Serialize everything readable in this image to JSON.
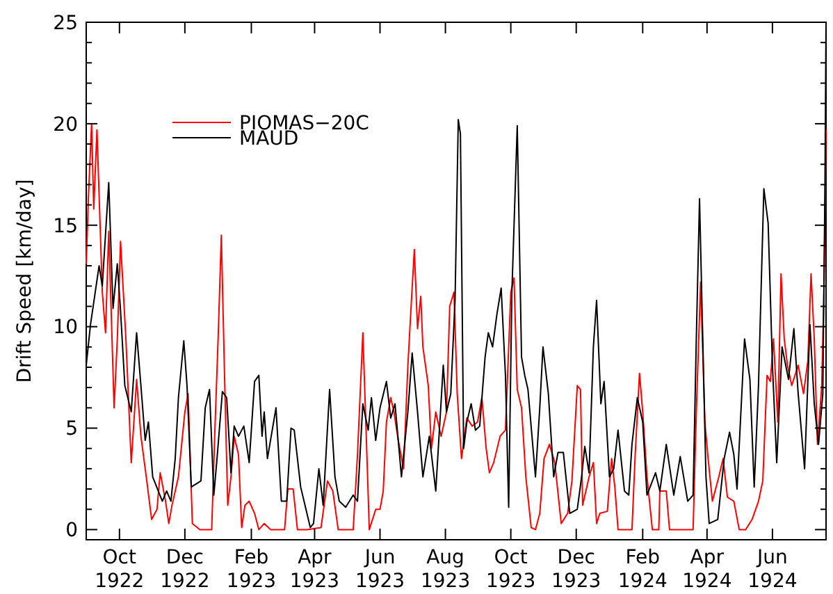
{
  "chart_data": {
    "type": "line",
    "ylabel": "Drift Speed [km/day]",
    "xlim": [
      "1922-08-31",
      "1924-07-21"
    ],
    "ylim": [
      -0.5,
      25
    ],
    "xticks": [
      {
        "value": "1922-10-01",
        "label": "Oct 1922"
      },
      {
        "value": "1922-12-01",
        "label": "Dec 1922"
      },
      {
        "value": "1923-02-01",
        "label": "Feb 1923"
      },
      {
        "value": "1923-04-01",
        "label": "Apr 1923"
      },
      {
        "value": "1923-06-01",
        "label": "Jun 1923"
      },
      {
        "value": "1923-08-01",
        "label": "Aug 1923"
      },
      {
        "value": "1923-10-01",
        "label": "Oct 1923"
      },
      {
        "value": "1923-12-01",
        "label": "Dec 1923"
      },
      {
        "value": "1924-02-01",
        "label": "Feb 1924"
      },
      {
        "value": "1924-04-01",
        "label": "Apr 1924"
      },
      {
        "value": "1924-06-01",
        "label": "Jun 1924"
      }
    ],
    "yticks": [
      0,
      {
        "value": 1,
        "label": null
      },
      {
        "value": 2,
        "label": null
      },
      {
        "value": 3,
        "label": null
      },
      {
        "value": 4,
        "label": null
      },
      5,
      {
        "value": 6,
        "label": null
      },
      {
        "value": 7,
        "label": null
      },
      {
        "value": 8,
        "label": null
      },
      {
        "value": 9,
        "label": null
      },
      10,
      {
        "value": 11,
        "label": null
      },
      {
        "value": 12,
        "label": null
      },
      {
        "value": 13,
        "label": null
      },
      {
        "value": 14,
        "label": null
      },
      15,
      {
        "value": 16,
        "label": null
      },
      {
        "value": 17,
        "label": null
      },
      {
        "value": 18,
        "label": null
      },
      {
        "value": 19,
        "label": null
      },
      20,
      {
        "value": 21,
        "label": null
      },
      {
        "value": 22,
        "label": null
      },
      {
        "value": 23,
        "label": null
      },
      {
        "value": 24,
        "label": null
      },
      25
    ],
    "grid": false,
    "legend": "top left",
    "marker": "none",
    "line_style": "solid",
    "series": [
      {
        "name": "PIOMAS−20C",
        "color": "#ff0000",
        "x": [
          "1922-08-31",
          "1922-09-02",
          "1922-09-05",
          "1922-09-07",
          "1922-09-10",
          "1922-09-15",
          "1922-09-18",
          "1922-09-21",
          "1922-09-26",
          "1922-09-29",
          "1922-10-02",
          "1922-10-07",
          "1922-10-12",
          "1922-10-17",
          "1922-10-21",
          "1922-10-26",
          "1922-10-31",
          "1922-11-05",
          "1922-11-08",
          "1922-11-13",
          "1922-11-16",
          "1922-11-19",
          "1922-11-25",
          "1922-12-01",
          "1922-12-04",
          "1922-12-08",
          "1922-12-15",
          "1922-12-20",
          "1922-12-26",
          "1922-12-29",
          "1923-01-01",
          "1923-01-04",
          "1923-01-07",
          "1923-01-10",
          "1923-01-13",
          "1923-01-16",
          "1923-01-20",
          "1923-01-23",
          "1923-01-26",
          "1923-01-30",
          "1923-02-04",
          "1923-02-08",
          "1923-02-13",
          "1923-02-19",
          "1923-03-04",
          "1923-03-07",
          "1923-03-12",
          "1923-03-16",
          "1923-03-25",
          "1923-04-07",
          "1923-04-13",
          "1923-04-18",
          "1923-04-23",
          "1923-05-07",
          "1923-05-11",
          "1923-05-16",
          "1923-05-19",
          "1923-05-22",
          "1923-05-28",
          "1923-06-01",
          "1923-06-04",
          "1923-06-07",
          "1923-06-11",
          "1923-06-14",
          "1923-06-18",
          "1923-06-23",
          "1923-06-27",
          "1923-06-30",
          "1923-07-03",
          "1923-07-06",
          "1923-07-09",
          "1923-07-11",
          "1923-07-16",
          "1923-07-19",
          "1923-07-23",
          "1923-07-28",
          "1923-08-02",
          "1923-08-05",
          "1923-08-09",
          "1923-08-12",
          "1923-08-16",
          "1923-08-21",
          "1923-08-26",
          "1923-08-31",
          "1923-09-04",
          "1923-09-08",
          "1923-09-11",
          "1923-09-15",
          "1923-09-21",
          "1923-09-26",
          "1923-10-01",
          "1923-10-04",
          "1923-10-07",
          "1923-10-11",
          "1923-10-15",
          "1923-10-20",
          "1923-10-24",
          "1923-10-28",
          "1923-11-01",
          "1923-11-06",
          "1923-11-11",
          "1923-11-17",
          "1923-11-23",
          "1923-11-27",
          "1923-12-02",
          "1923-12-05",
          "1923-12-07",
          "1923-12-13",
          "1923-12-17",
          "1923-12-20",
          "1923-12-23",
          "1923-12-30",
          "1924-01-03",
          "1924-01-06",
          "1924-01-09",
          "1924-01-22",
          "1924-01-25",
          "1924-01-29",
          "1924-02-01",
          "1924-02-05",
          "1924-02-10",
          "1924-02-16",
          "1924-02-17",
          "1924-02-23",
          "1924-02-26",
          "1924-03-19",
          "1924-03-22",
          "1924-03-26",
          "1924-03-30",
          "1924-04-02",
          "1924-04-06",
          "1924-04-12",
          "1924-04-16",
          "1924-04-20",
          "1924-04-26",
          "1924-05-01",
          "1924-05-07",
          "1924-05-13",
          "1924-05-19",
          "1924-05-23",
          "1924-05-27",
          "1924-05-30",
          "1924-06-02",
          "1924-06-06",
          "1924-06-09",
          "1924-06-12",
          "1924-06-15",
          "1924-06-19",
          "1924-06-25",
          "1924-06-30",
          "1924-07-04",
          "1924-07-07",
          "1924-07-10",
          "1924-07-13",
          "1924-07-17",
          "1924-07-19",
          "1924-07-21"
        ],
        "values": [
          13.1,
          16.3,
          20,
          15.8,
          19.7,
          11.7,
          9.7,
          14.7,
          6.0,
          9.4,
          14.2,
          9.4,
          3.3,
          7.4,
          4.6,
          2.6,
          0.5,
          1.0,
          2.8,
          1.4,
          0.3,
          1.2,
          2.6,
          5.8,
          6.7,
          0.3,
          0,
          0,
          0,
          4.9,
          9.4,
          14.5,
          7.6,
          1.2,
          2.6,
          4.6,
          3.7,
          0.1,
          1.2,
          1.4,
          0.8,
          0,
          0.3,
          0,
          0,
          2.0,
          2.0,
          0,
          0,
          0.1,
          2.4,
          1.9,
          0,
          0,
          3.7,
          9.7,
          4.9,
          0,
          1.0,
          1.0,
          1.9,
          5.3,
          6.5,
          5.8,
          4.4,
          3.0,
          8.1,
          11.0,
          13.8,
          9.9,
          11.5,
          9.0,
          7.1,
          4.0,
          5.8,
          4.6,
          5.8,
          11.0,
          11.7,
          6.7,
          3.5,
          5.5,
          5.1,
          5.3,
          6.5,
          4.0,
          2.8,
          3.3,
          4.6,
          4.9,
          11.7,
          12.4,
          6.9,
          6.0,
          2.6,
          0.1,
          0,
          0.8,
          3.5,
          4.2,
          3.3,
          0.3,
          0.8,
          2.4,
          7.1,
          6.9,
          1.2,
          2.6,
          3.3,
          0.3,
          0.8,
          0.9,
          3.5,
          2.1,
          0,
          0,
          3.7,
          7.7,
          5.8,
          2.6,
          0,
          0,
          1.9,
          1.9,
          0,
          0,
          5.8,
          12.2,
          5.3,
          3.5,
          1.4,
          2.6,
          3.5,
          1.6,
          1.4,
          0,
          0,
          0.5,
          1.4,
          2.4,
          7.6,
          7.3,
          9.4,
          5.3,
          12.6,
          9.4,
          8.1,
          7.1,
          8.1,
          6.7,
          8.3,
          12.6,
          9.4,
          4.2,
          7.1,
          11.7,
          19.7
        ]
      },
      {
        "name": "MAUD",
        "color": "#000000",
        "x": [
          "1922-08-31",
          "1922-09-04",
          "1922-09-12",
          "1922-09-15",
          "1922-09-21",
          "1922-09-25",
          "1922-09-29",
          "1922-10-02",
          "1922-10-06",
          "1922-10-12",
          "1922-10-17",
          "1922-10-21",
          "1922-10-25",
          "1922-10-28",
          "1922-11-01",
          "1922-11-10",
          "1922-11-14",
          "1922-11-18",
          "1922-11-22",
          "1922-11-25",
          "1922-11-30",
          "1922-12-03",
          "1922-12-07",
          "1922-12-16",
          "1922-12-20",
          "1922-12-24",
          "1922-12-28",
          "1922-12-31",
          "1923-01-05",
          "1923-01-09",
          "1923-01-13",
          "1923-01-16",
          "1923-01-20",
          "1923-01-25",
          "1923-01-30",
          "1923-02-04",
          "1923-02-08",
          "1923-02-11",
          "1923-02-13",
          "1923-02-16",
          "1923-02-24",
          "1923-03-01",
          "1923-03-06",
          "1923-03-10",
          "1923-03-13",
          "1923-03-19",
          "1923-03-28",
          "1923-03-31",
          "1923-04-05",
          "1923-04-09",
          "1923-04-15",
          "1923-04-20",
          "1923-04-24",
          "1923-04-30",
          "1923-05-07",
          "1923-05-11",
          "1923-05-16",
          "1923-05-21",
          "1923-05-24",
          "1923-05-28",
          "1923-06-01",
          "1923-06-07",
          "1923-06-11",
          "1923-06-15",
          "1923-06-21",
          "1923-06-27",
          "1923-07-01",
          "1923-07-06",
          "1923-07-11",
          "1923-07-17",
          "1923-07-23",
          "1923-07-30",
          "1923-08-02",
          "1923-08-06",
          "1923-08-10",
          "1923-08-13",
          "1923-08-15",
          "1923-08-18",
          "1923-08-21",
          "1923-08-25",
          "1923-08-29",
          "1923-09-02",
          "1923-09-07",
          "1923-09-10",
          "1923-09-14",
          "1923-09-18",
          "1923-09-22",
          "1923-09-26",
          "1923-09-29",
          "1923-10-02",
          "1923-10-07",
          "1923-10-11",
          "1923-10-14",
          "1923-10-17",
          "1923-10-24",
          "1923-10-28",
          "1923-10-31",
          "1923-11-05",
          "1923-11-10",
          "1923-11-14",
          "1923-11-19",
          "1923-11-25",
          "1923-12-02",
          "1923-12-06",
          "1923-12-09",
          "1923-12-13",
          "1923-12-17",
          "1923-12-20",
          "1923-12-24",
          "1923-12-27",
          "1924-01-01",
          "1924-01-05",
          "1924-01-09",
          "1924-01-15",
          "1924-01-19",
          "1924-01-22",
          "1924-01-27",
          "1924-02-01",
          "1924-02-05",
          "1924-02-13",
          "1924-02-17",
          "1924-02-23",
          "1924-03-01",
          "1924-03-07",
          "1924-03-14",
          "1924-03-19",
          "1924-03-22",
          "1924-03-25",
          "1924-03-31",
          "1924-04-03",
          "1924-04-11",
          "1924-04-17",
          "1924-04-22",
          "1924-04-26",
          "1924-04-29",
          "1924-05-06",
          "1924-05-11",
          "1924-05-15",
          "1924-05-19",
          "1924-05-24",
          "1924-05-28",
          "1924-06-01",
          "1924-06-05",
          "1924-06-10",
          "1924-06-16",
          "1924-06-21",
          "1924-06-25",
          "1924-07-01",
          "1924-07-06",
          "1924-07-10",
          "1924-07-14",
          "1924-07-18",
          "1924-07-20",
          "1924-07-21"
        ],
        "values": [
          8.1,
          10.1,
          13,
          12,
          17.1,
          10.9,
          13.1,
          10.8,
          7.1,
          5.8,
          9.7,
          7.1,
          4.4,
          5.3,
          2.6,
          1.4,
          1.9,
          1.4,
          3.5,
          6.5,
          9.3,
          7.1,
          2.1,
          2.4,
          6.0,
          6.9,
          1.7,
          3.5,
          6.8,
          6.5,
          2.8,
          5.1,
          4.6,
          5.1,
          3.3,
          7.3,
          7.6,
          4.6,
          5.8,
          3.5,
          6.0,
          1.4,
          1.4,
          5.0,
          4.9,
          2.1,
          0.1,
          0.3,
          3.0,
          1.2,
          6.9,
          2.6,
          1.4,
          1.1,
          1.7,
          1.4,
          6.2,
          4.9,
          6.5,
          4.4,
          6.0,
          7.3,
          5.5,
          6.2,
          2.6,
          5.8,
          8.7,
          5.8,
          2.6,
          4.6,
          1.9,
          8.1,
          5.8,
          6.7,
          11.3,
          20.2,
          19.5,
          4.0,
          5.3,
          6.2,
          4.9,
          5.1,
          8.5,
          9.7,
          9.0,
          10.6,
          11.9,
          7.6,
          1.1,
          11.7,
          19.9,
          8.5,
          7.6,
          6.9,
          2.6,
          6.0,
          9.0,
          6.7,
          2.6,
          3.8,
          3.8,
          0.8,
          1.0,
          2.6,
          4.1,
          2.8,
          9.0,
          11.3,
          6.2,
          7.3,
          2.6,
          3.0,
          4.9,
          1.9,
          1.7,
          4.2,
          6.5,
          5.3,
          1.7,
          2.8,
          1.9,
          4.2,
          1.7,
          3.6,
          1.4,
          1.7,
          9.4,
          16.3,
          2.6,
          0.3,
          0.5,
          3.5,
          4.8,
          3.7,
          2.0,
          9.4,
          7.4,
          2.1,
          7.1,
          16.8,
          15.1,
          8.1,
          3.3,
          9.0,
          7.4,
          9.9,
          6.7,
          3.0,
          10.1,
          6.2,
          4.2,
          6.7,
          17,
          25
        ]
      }
    ]
  }
}
